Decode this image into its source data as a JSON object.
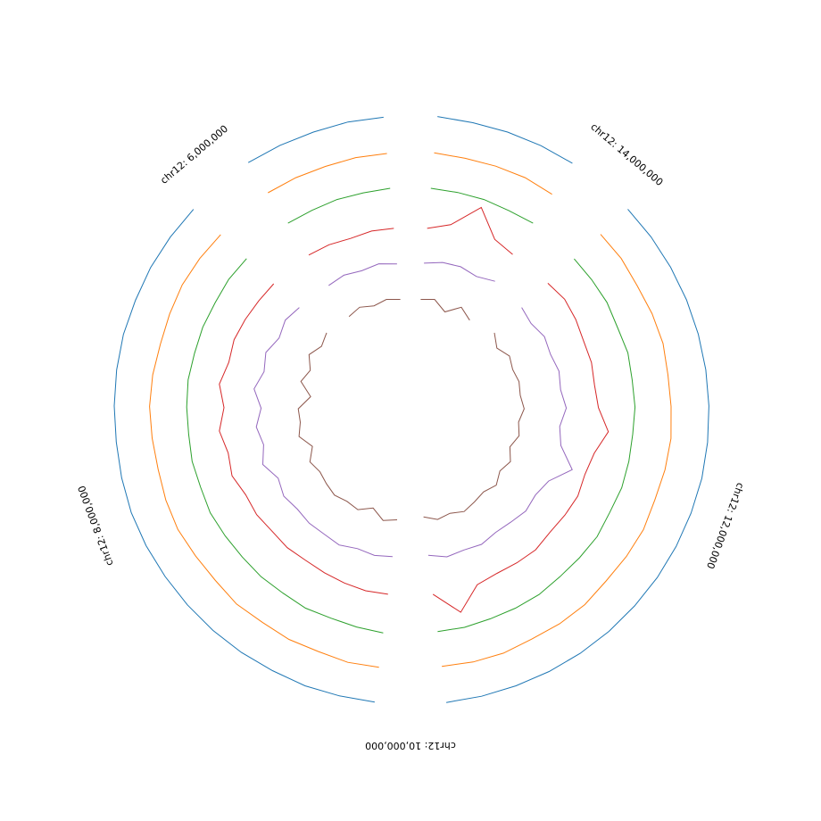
{
  "chart_data": {
    "type": "circos",
    "x": [
      5000000,
      5200000,
      5400000,
      5600000,
      5800000,
      6000000,
      6200000,
      6400000,
      6600000,
      6800000,
      7000000,
      7200000,
      7400000,
      7600000,
      7800000,
      8000000,
      8200000,
      8400000,
      8600000,
      8800000,
      9000000,
      9200000,
      9400000,
      9600000,
      9800000,
      10000000,
      10200000,
      10400000,
      10600000,
      10800000,
      11000000,
      11200000,
      11400000,
      11600000,
      11800000,
      12000000,
      12200000,
      12400000,
      12600000,
      12800000,
      13000000,
      13200000,
      13400000,
      13600000,
      13800000,
      14000000,
      14200000,
      14400000,
      14600000,
      14800000,
      15000000
    ],
    "xlim": [
      4850000,
      15150000
    ],
    "xticks": [
      {
        "value": 6000000,
        "label": "chr12: 6,000,000"
      },
      {
        "value": 8000000,
        "label": "chr12: 8,000,000"
      },
      {
        "value": 10000000,
        "label": "chr12: 10,000,000"
      },
      {
        "value": 12000000,
        "label": "chr12: 12,000,000"
      },
      {
        "value": 14000000,
        "label": "chr12: 14,000,000"
      }
    ],
    "ylim": [
      0,
      150
    ],
    "series": [
      {
        "color": "#1f77b4",
        "values": [
          50,
          52,
          51,
          53,
          55,
          null,
          54,
          55,
          56,
          55,
          57,
          56,
          55,
          54,
          56,
          58,
          57,
          55,
          54,
          53,
          52,
          50,
          51,
          49,
          48,
          null,
          49,
          50,
          51,
          53,
          55,
          57,
          58,
          60,
          61,
          62,
          63,
          62,
          61,
          60,
          59,
          58,
          57,
          56,
          55,
          null,
          53,
          52,
          51,
          50,
          52
        ]
      },
      {
        "color": "#ff7f0e",
        "values": [
          48,
          50,
          49,
          52,
          54,
          null,
          50,
          53,
          55,
          52,
          50,
          54,
          56,
          53,
          51,
          55,
          57,
          52,
          50,
          54,
          49,
          51,
          48,
          52,
          50,
          null,
          47,
          51,
          53,
          50,
          54,
          56,
          52,
          55,
          58,
          54,
          57,
          59,
          55,
          53,
          57,
          54,
          50,
          53,
          51,
          null,
          49,
          52,
          50,
          48,
          50
        ]
      },
      {
        "color": "#2ca02c",
        "values": [
          50,
          49,
          51,
          50,
          52,
          null,
          51,
          53,
          50,
          52,
          51,
          54,
          52,
          50,
          53,
          51,
          55,
          52,
          50,
          51,
          49,
          52,
          48,
          50,
          53,
          null,
          49,
          51,
          50,
          52,
          54,
          51,
          53,
          56,
          52,
          55,
          53,
          51,
          54,
          52,
          55,
          50,
          53,
          51,
          50,
          null,
          52,
          49,
          51,
          50,
          50
        ]
      },
      {
        "color": "#d62728",
        "values": [
          50,
          52,
          48,
          55,
          58,
          null,
          60,
          62,
          66,
          70,
          64,
          78,
          60,
          76,
          62,
          70,
          56,
          58,
          52,
          54,
          50,
          52,
          55,
          58,
          56,
          null,
          56,
          120,
          60,
          54,
          58,
          62,
          56,
          60,
          64,
          58,
          66,
          95,
          64,
          58,
          62,
          60,
          66,
          70,
          62,
          null,
          60,
          72,
          140,
          70,
          50
        ]
      },
      {
        "color": "#9467bd",
        "values": [
          50,
          58,
          52,
          60,
          56,
          null,
          62,
          70,
          58,
          74,
          62,
          80,
          56,
          72,
          60,
          78,
          54,
          66,
          58,
          62,
          60,
          64,
          52,
          56,
          50,
          null,
          46,
          60,
          56,
          62,
          54,
          58,
          66,
          60,
          72,
          120,
          70,
          58,
          74,
          62,
          68,
          60,
          66,
          54,
          62,
          null,
          70,
          56,
          64,
          62,
          52
        ]
      },
      {
        "color": "#8c564b",
        "values": [
          50,
          56,
          48,
          60,
          52,
          null,
          58,
          45,
          62,
          40,
          55,
          20,
          52,
          48,
          58,
          30,
          54,
          44,
          50,
          56,
          48,
          52,
          30,
          55,
          46,
          null,
          38,
          52,
          46,
          58,
          50,
          44,
          56,
          40,
          52,
          34,
          50,
          42,
          56,
          48,
          52,
          46,
          54,
          36,
          58,
          null,
          40,
          60,
          30,
          56,
          50
        ]
      }
    ]
  }
}
